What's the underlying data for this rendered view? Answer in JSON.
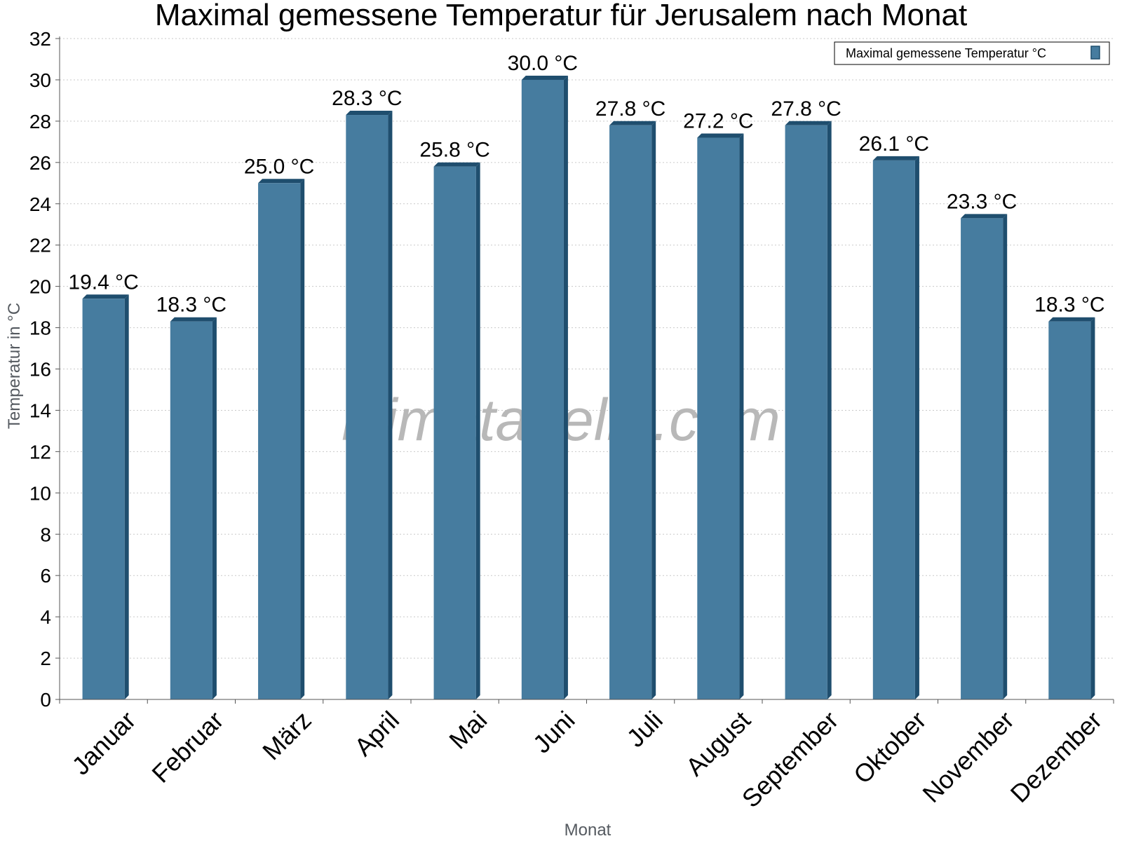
{
  "chart_data": {
    "type": "bar",
    "title": "Maximal gemessene Temperatur für Jerusalem nach Monat",
    "xlabel": "Monat",
    "ylabel": "Temperatur in °C",
    "ylim": [
      0,
      32
    ],
    "ytick_step": 2,
    "grid": true,
    "legend_position": "top-right",
    "categories": [
      "Januar",
      "Februar",
      "März",
      "April",
      "Mai",
      "Juni",
      "Juli",
      "August",
      "September",
      "Oktober",
      "November",
      "Dezember"
    ],
    "series": [
      {
        "name": "Maximal gemessene Temperatur °C",
        "color": "#467c9f",
        "values": [
          19.4,
          18.3,
          25.0,
          28.3,
          25.8,
          30.0,
          27.8,
          27.2,
          27.8,
          26.1,
          23.3,
          18.3
        ],
        "labels": [
          "19.4 °C",
          "18.3 °C",
          "25.0 °C",
          "28.3 °C",
          "25.8 °C",
          "30.0 °C",
          "27.8 °C",
          "27.2 °C",
          "27.8 °C",
          "26.1 °C",
          "23.3 °C",
          "18.3 °C"
        ]
      }
    ],
    "watermark": "klimatabelle.com"
  }
}
